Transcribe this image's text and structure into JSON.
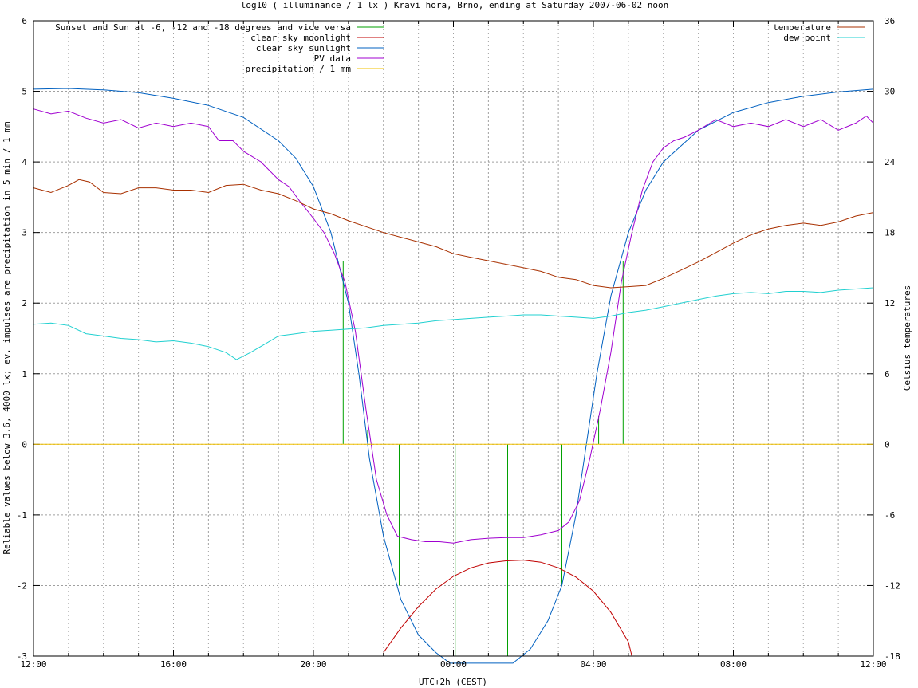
{
  "chart_data": {
    "type": "line",
    "title": "log10 ( illuminance / 1 lx ) Kravi hora, Brno, ending at Saturday 2007-06-02 noon",
    "xlabel": "UTC+2h (CEST)",
    "ylabel": "Reliable values below 3.6, 4000 lx; ev. impulses are precipitation in 5 min / 1 mm",
    "y2label": "Celsius temperatures",
    "xlim": [
      0,
      24
    ],
    "ylim": [
      -3,
      6
    ],
    "y2lim": [
      -18,
      36
    ],
    "x_ticks": [
      {
        "x": 0,
        "label": "12:00"
      },
      {
        "x": 4,
        "label": "16:00"
      },
      {
        "x": 8,
        "label": "20:00"
      },
      {
        "x": 12,
        "label": "00:00"
      },
      {
        "x": 16,
        "label": "04:00"
      },
      {
        "x": 20,
        "label": "08:00"
      },
      {
        "x": 24,
        "label": "12:00"
      }
    ],
    "y_ticks": [
      -3,
      -2,
      -1,
      0,
      1,
      2,
      3,
      4,
      5,
      6
    ],
    "y2_ticks": [
      -18,
      -12,
      -6,
      0,
      6,
      12,
      18,
      24,
      30,
      36
    ],
    "grid": true,
    "legend_left": [
      {
        "label": "Sunset and Sun at -6, -12 and -18 degrees and vice versa",
        "color": "#00a000"
      },
      {
        "label": "clear sky moonlight",
        "color": "#c00000"
      },
      {
        "label": "clear sky sunlight",
        "color": "#0060c0"
      },
      {
        "label": "PV data",
        "color": "#a000d0"
      },
      {
        "label": "precipitation / 1 mm",
        "color": "#f0c000"
      }
    ],
    "legend_right": [
      {
        "label": "temperature",
        "color": "#a83000"
      },
      {
        "label": "dew point",
        "color": "#20d0d0"
      }
    ],
    "sun_events": [
      {
        "x": 8.85,
        "y_top": 2.6
      },
      {
        "x": 9.55,
        "y_top": 0.2
      },
      {
        "x": 10.45,
        "y_top": -2.0
      },
      {
        "x": 12.05,
        "y_top": -3.0
      },
      {
        "x": 13.55,
        "y_top": -3.0
      },
      {
        "x": 15.1,
        "y_top": -2.0
      },
      {
        "x": 16.15,
        "y_top": 0.4
      },
      {
        "x": 16.85,
        "y_top": 2.6
      }
    ],
    "series": [
      {
        "name": "clear sky sunlight",
        "color": "#0060c0",
        "axis": "left",
        "x": [
          0,
          1,
          2,
          3,
          4,
          5,
          6,
          7,
          7.5,
          8,
          8.5,
          9,
          9.3,
          9.6,
          10,
          10.5,
          11,
          11.5,
          11.9,
          12.3,
          13.7,
          14.2,
          14.7,
          15.1,
          15.5,
          15.8,
          16.1,
          16.5,
          17,
          17.5,
          18,
          19,
          20,
          21,
          22,
          23,
          24
        ],
        "y": [
          5.03,
          5.04,
          5.02,
          4.98,
          4.9,
          4.8,
          4.63,
          4.3,
          4.05,
          3.65,
          3.0,
          2.0,
          1.0,
          -0.2,
          -1.3,
          -2.2,
          -2.7,
          -2.95,
          -3.1,
          -3.1,
          -3.1,
          -2.9,
          -2.5,
          -2.0,
          -1.0,
          0.0,
          1.0,
          2.1,
          3.0,
          3.6,
          4.0,
          4.45,
          4.7,
          4.84,
          4.93,
          4.99,
          5.03
        ]
      },
      {
        "name": "clear sky moonlight",
        "color": "#c00000",
        "axis": "left",
        "x": [
          10.0,
          10.5,
          11.0,
          11.5,
          12.0,
          12.5,
          13.0,
          13.5,
          14.0,
          14.5,
          15.0,
          15.5,
          16.0,
          16.5,
          17.0,
          17.1
        ],
        "y": [
          -2.95,
          -2.6,
          -2.3,
          -2.05,
          -1.87,
          -1.75,
          -1.68,
          -1.65,
          -1.64,
          -1.67,
          -1.75,
          -1.88,
          -2.08,
          -2.38,
          -2.8,
          -3.0
        ]
      },
      {
        "name": "PV data",
        "color": "#a000d0",
        "axis": "left",
        "x": [
          0,
          0.5,
          1,
          1.5,
          2,
          2.5,
          3,
          3.5,
          4,
          4.5,
          5,
          5.3,
          5.7,
          6,
          6.5,
          7,
          7.3,
          7.6,
          8,
          8.3,
          8.6,
          8.9,
          9.2,
          9.5,
          9.8,
          10.1,
          10.4,
          10.8,
          11.2,
          11.6,
          12,
          12.5,
          13,
          13.5,
          14,
          14.5,
          15,
          15.3,
          15.6,
          15.9,
          16.2,
          16.5,
          16.8,
          17.1,
          17.4,
          17.7,
          18,
          18.3,
          18.6,
          19,
          19.5,
          20,
          20.5,
          21,
          21.5,
          22,
          22.5,
          23,
          23.5,
          23.8,
          24
        ],
        "y": [
          4.75,
          4.68,
          4.72,
          4.62,
          4.55,
          4.6,
          4.48,
          4.55,
          4.5,
          4.55,
          4.5,
          4.3,
          4.3,
          4.15,
          4.0,
          3.75,
          3.65,
          3.45,
          3.2,
          3.0,
          2.7,
          2.3,
          1.6,
          0.5,
          -0.5,
          -1.0,
          -1.3,
          -1.35,
          -1.38,
          -1.38,
          -1.4,
          -1.35,
          -1.33,
          -1.32,
          -1.32,
          -1.28,
          -1.22,
          -1.1,
          -0.8,
          -0.2,
          0.5,
          1.3,
          2.3,
          3.0,
          3.6,
          4.0,
          4.2,
          4.3,
          4.35,
          4.45,
          4.6,
          4.5,
          4.55,
          4.5,
          4.6,
          4.5,
          4.6,
          4.45,
          4.55,
          4.65,
          4.55
        ]
      },
      {
        "name": "precipitation / 1 mm",
        "color": "#f0c000",
        "axis": "left",
        "x": [
          0,
          24
        ],
        "y": [
          0,
          0
        ]
      },
      {
        "name": "temperature",
        "color": "#a83000",
        "axis": "right",
        "x": [
          0,
          0.5,
          1,
          1.3,
          1.6,
          2,
          2.5,
          3,
          3.5,
          4,
          4.5,
          5,
          5.5,
          6,
          6.5,
          7,
          7.5,
          8,
          8.5,
          9,
          9.5,
          10,
          10.5,
          11,
          11.5,
          12,
          12.5,
          13,
          13.5,
          14,
          14.5,
          15,
          15.5,
          16,
          16.5,
          17,
          17.5,
          18,
          18.5,
          19,
          19.5,
          20,
          20.5,
          21,
          21.5,
          22,
          22.5,
          23,
          23.5,
          24
        ],
        "y": [
          21.8,
          21.4,
          22.0,
          22.5,
          22.3,
          21.4,
          21.3,
          21.8,
          21.8,
          21.6,
          21.6,
          21.4,
          22.0,
          22.1,
          21.6,
          21.3,
          20.7,
          20.0,
          19.6,
          19.0,
          18.5,
          18.0,
          17.6,
          17.2,
          16.8,
          16.2,
          15.9,
          15.6,
          15.3,
          15.0,
          14.7,
          14.2,
          14.0,
          13.5,
          13.3,
          13.4,
          13.5,
          14.1,
          14.8,
          15.5,
          16.3,
          17.1,
          17.8,
          18.3,
          18.6,
          18.8,
          18.6,
          18.9,
          19.4,
          19.7
        ]
      },
      {
        "name": "dew point",
        "color": "#20d0d0",
        "axis": "right",
        "x": [
          0,
          0.5,
          1,
          1.5,
          2,
          2.5,
          3,
          3.5,
          4,
          4.5,
          5,
          5.5,
          5.8,
          6.2,
          6.6,
          7,
          7.5,
          8,
          8.5,
          9,
          9.5,
          10,
          10.5,
          11,
          11.5,
          12,
          12.5,
          13,
          13.5,
          14,
          14.5,
          15,
          15.5,
          16,
          16.5,
          17,
          17.5,
          18,
          18.5,
          19,
          19.5,
          20,
          20.5,
          21,
          21.5,
          22,
          22.5,
          23,
          23.5,
          24
        ],
        "y": [
          10.2,
          10.3,
          10.1,
          9.4,
          9.2,
          9.0,
          8.9,
          8.7,
          8.8,
          8.6,
          8.3,
          7.8,
          7.2,
          7.8,
          8.5,
          9.2,
          9.4,
          9.6,
          9.7,
          9.8,
          9.9,
          10.1,
          10.2,
          10.3,
          10.5,
          10.6,
          10.7,
          10.8,
          10.9,
          11.0,
          11.0,
          10.9,
          10.8,
          10.7,
          10.9,
          11.2,
          11.4,
          11.7,
          12.0,
          12.3,
          12.6,
          12.8,
          12.9,
          12.8,
          13.0,
          13.0,
          12.9,
          13.1,
          13.2,
          13.3
        ]
      }
    ]
  }
}
